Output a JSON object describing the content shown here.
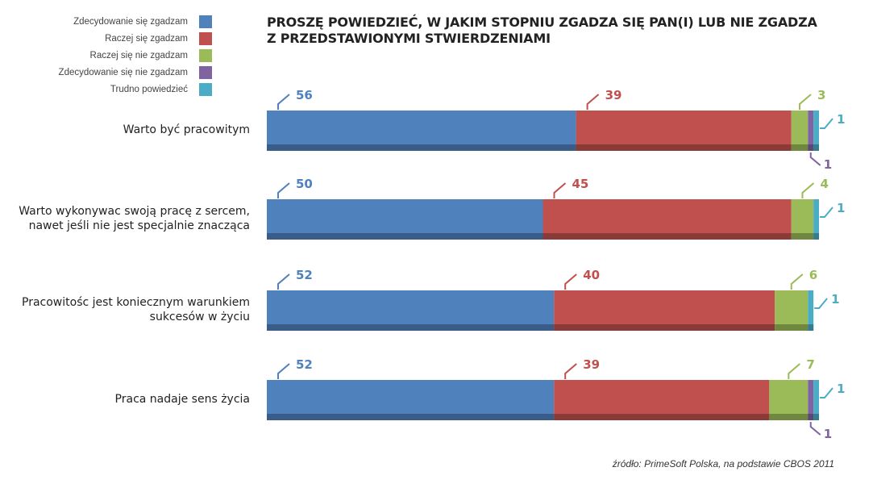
{
  "chart_data": {
    "type": "bar",
    "stacked": true,
    "orientation": "horizontal",
    "title": "PROSZĘ POWIEDZIEĆ, W JAKIM STOPNIU ZGADZA SIĘ PAN(I) LUB NIE ZGADZA Z PRZEDSTAWIONYMI STWIERDZENIAMI",
    "title_lines": [
      "PROSZĘ POWIEDZIEĆ, W JAKIM STOPNIU ZGADZA SIĘ PAN(I) LUB NIE ZGADZA",
      "Z PRZEDSTAWIONYMI STWIERDZENIAMI"
    ],
    "categories": [
      "Warto być pracowitym",
      "Warto wykonywac swoją pracę z sercem, nawet jeśli nie jest specjalnie znacząca",
      "Pracowitośc jest koniecznym warunkiem sukcesów w życiu",
      "Praca nadaje sens życia"
    ],
    "category_lines": [
      [
        "Warto być pracowitym"
      ],
      [
        "Warto wykonywac swoją pracę z sercem,",
        "nawet jeśli nie jest specjalnie znacząca"
      ],
      [
        "Pracowitośc jest koniecznym warunkiem",
        "sukcesów w życiu"
      ],
      [
        "Praca nadaje sens życia"
      ]
    ],
    "series": [
      {
        "name": "Zdecydowanie się zgadzam",
        "color": "#4f81bd",
        "values": [
          56,
          50,
          52,
          52
        ]
      },
      {
        "name": "Raczej się zgadzam",
        "color": "#c0504d",
        "values": [
          39,
          45,
          40,
          39
        ]
      },
      {
        "name": "Raczej się nie zgadzam",
        "color": "#9bbb59",
        "values": [
          3,
          4,
          6,
          7
        ]
      },
      {
        "name": "Zdecydowanie się nie zgadzam",
        "color": "#8064a2",
        "values": [
          1,
          null,
          null,
          1
        ]
      },
      {
        "name": "Trudno powiedzieć",
        "color": "#4bacc6",
        "values": [
          1,
          1,
          1,
          1
        ]
      }
    ],
    "xlim": [
      0,
      100
    ],
    "legend_position": "top-left",
    "grid": false
  },
  "source": "źródło: PrimeSoft Polska, na podstawie CBOS 2011"
}
